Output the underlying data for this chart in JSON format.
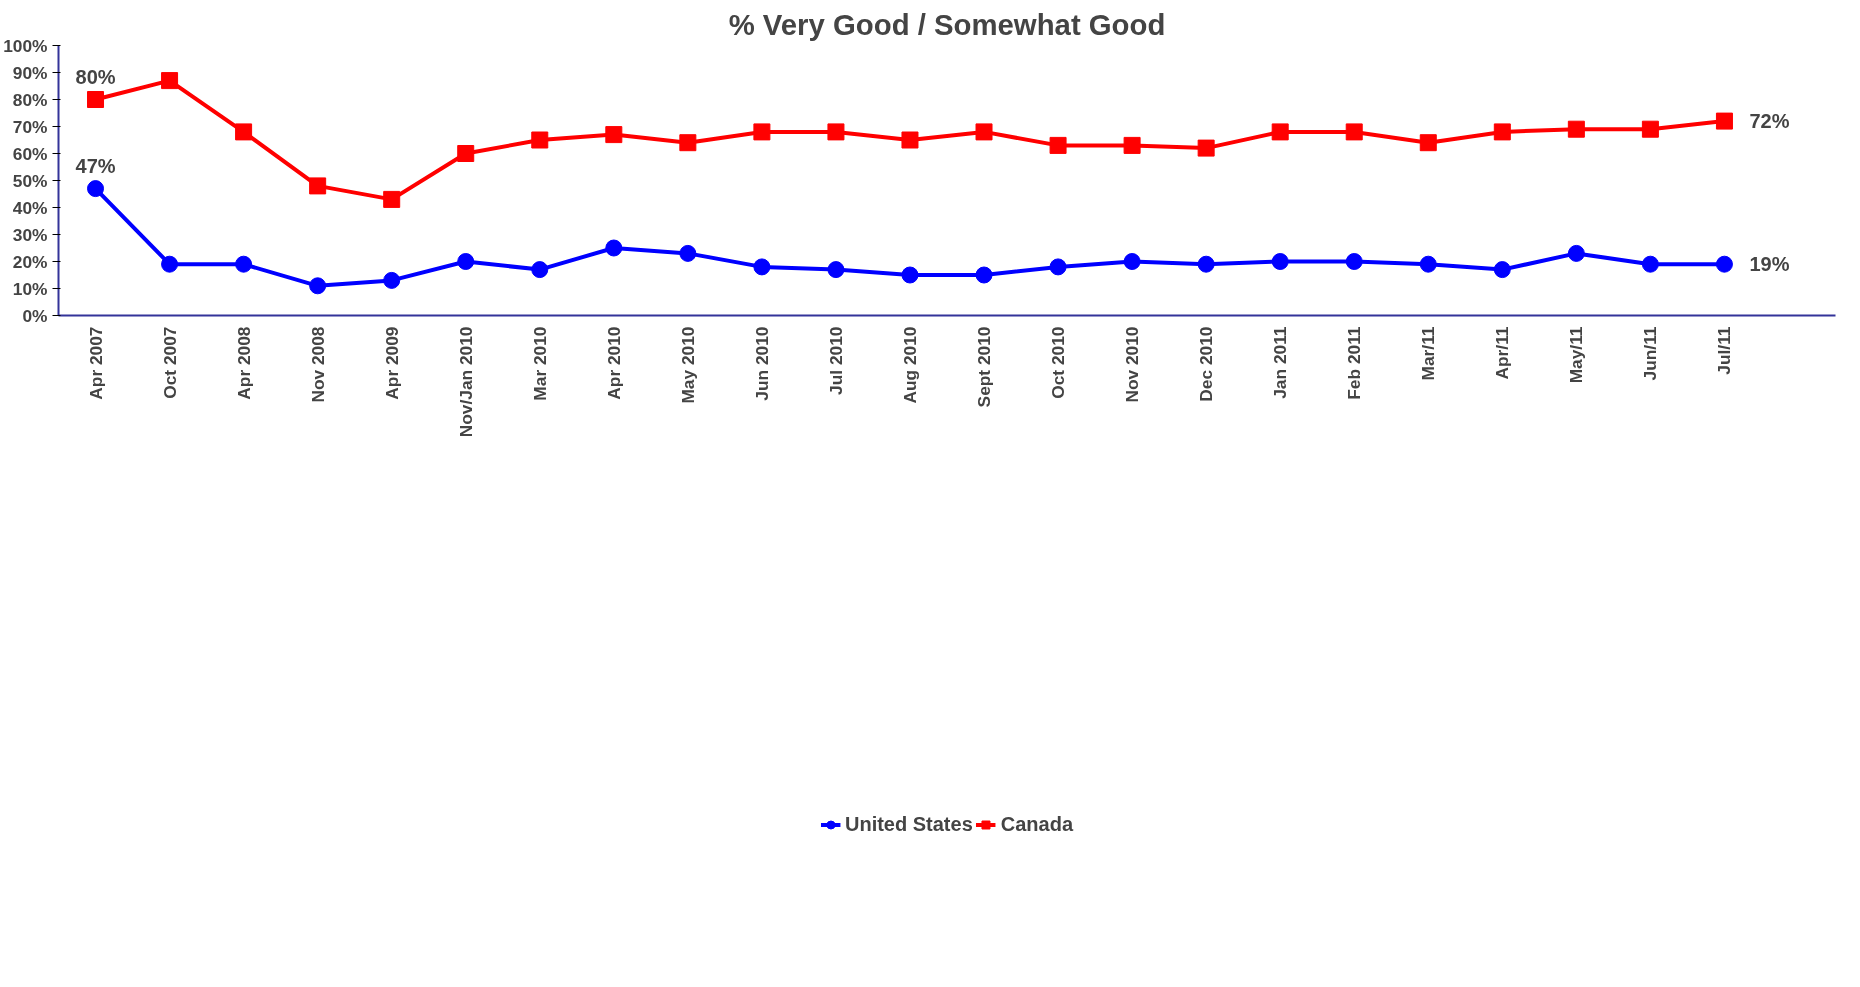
{
  "chart_data": {
    "type": "line",
    "title": "% Very Good / Somewhat Good",
    "categories": [
      "Apr 2007",
      "Oct 2007",
      "Apr 2008",
      "Nov 2008",
      "Apr 2009",
      "Nov/Jan 2010",
      "Mar 2010",
      "Apr 2010",
      "May 2010",
      "Jun 2010",
      "Jul 2010",
      "Aug 2010",
      "Sept 2010",
      "Oct 2010",
      "Nov 2010",
      "Dec 2010",
      "Jan 2011",
      "Feb 2011",
      "Mar/11",
      "Apr/11",
      "May/11",
      "Jun/11",
      "Jul/11"
    ],
    "series": [
      {
        "name": "United States",
        "color": "#0000ff",
        "marker": "circle",
        "values": [
          47,
          19,
          19,
          11,
          13,
          20,
          17,
          25,
          23,
          18,
          17,
          15,
          15,
          18,
          20,
          19,
          20,
          20,
          19,
          17,
          23,
          19,
          19
        ],
        "value_labels": [
          "47%",
          null,
          null,
          null,
          null,
          null,
          null,
          null,
          null,
          null,
          null,
          null,
          null,
          null,
          null,
          null,
          null,
          null,
          null,
          null,
          null,
          null,
          "19%"
        ]
      },
      {
        "name": "Canada",
        "color": "#ff0000",
        "marker": "square",
        "values": [
          80,
          87,
          68,
          48,
          43,
          60,
          65,
          67,
          64,
          68,
          68,
          65,
          68,
          63,
          63,
          62,
          68,
          68,
          64,
          68,
          69,
          69,
          72
        ],
        "value_labels": [
          "80%",
          null,
          null,
          null,
          null,
          null,
          null,
          null,
          null,
          null,
          null,
          null,
          null,
          null,
          null,
          null,
          null,
          null,
          null,
          null,
          null,
          null,
          "72%"
        ]
      }
    ],
    "ylim": [
      0,
      100
    ],
    "yticks": [
      {
        "value": 0,
        "label": "0%"
      },
      {
        "value": 10,
        "label": "10%"
      },
      {
        "value": 20,
        "label": "20%"
      },
      {
        "value": 30,
        "label": "30%"
      },
      {
        "value": 40,
        "label": "40%"
      },
      {
        "value": 50,
        "label": "50%"
      },
      {
        "value": 60,
        "label": "60%"
      },
      {
        "value": 70,
        "label": "70%"
      },
      {
        "value": 80,
        "label": "80%"
      },
      {
        "value": 90,
        "label": "90%"
      },
      {
        "value": 100,
        "label": "100%"
      }
    ],
    "grid": false,
    "legend": "bottom",
    "line_style": "solid"
  }
}
